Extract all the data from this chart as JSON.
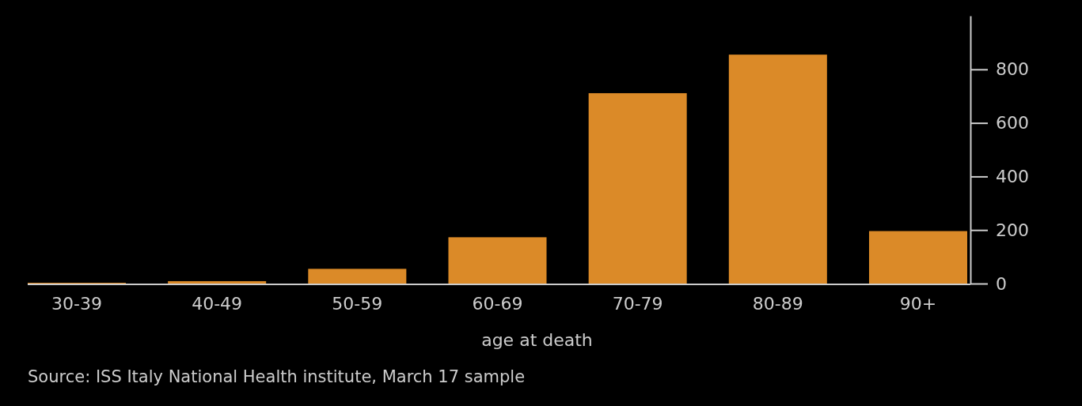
{
  "chart_data": {
    "type": "bar",
    "xlabel": "age at death",
    "annotations": [
      "Source: ISS Italy National Health institute, March 17 sample"
    ],
    "categories": [
      "30-39",
      "40-49",
      "50-59",
      "60-69",
      "70-79",
      "80-89",
      "90+"
    ],
    "values": [
      3,
      9,
      55,
      173,
      711,
      855,
      196
    ],
    "color": "#db8a28",
    "ylim": [
      0,
      1000
    ],
    "yticks": [
      0,
      200,
      400,
      600,
      800
    ],
    "grid": false
  }
}
